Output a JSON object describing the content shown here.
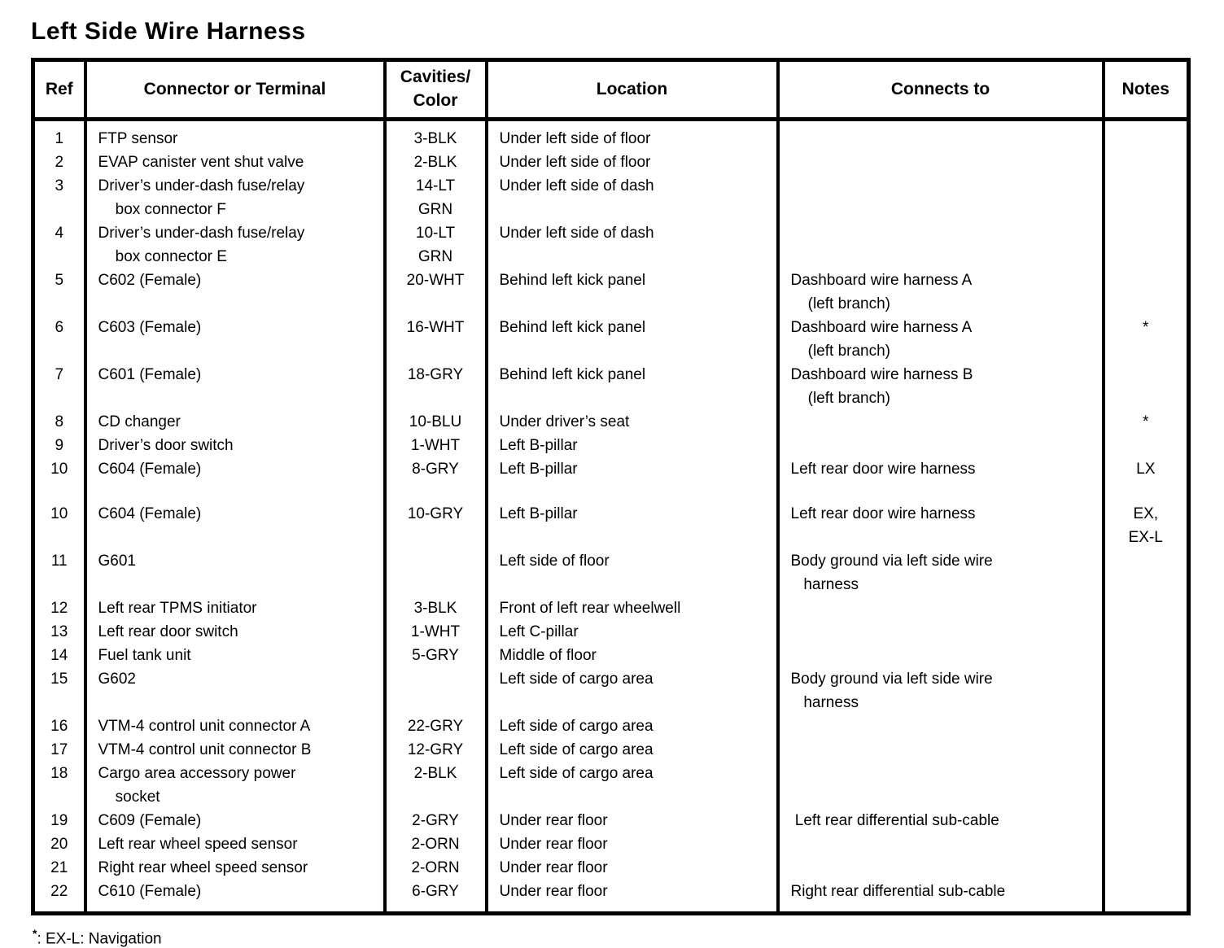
{
  "page": {
    "title": "Left Side Wire Harness",
    "footnote_symbol": "*",
    "footnote_text": ": EX-L: Navigation"
  },
  "table": {
    "headers": [
      {
        "id": "ref",
        "lines": [
          "Ref"
        ]
      },
      {
        "id": "connector",
        "lines": [
          "Connector or Terminal"
        ]
      },
      {
        "id": "cavities",
        "lines": [
          "Cavities/",
          "Color"
        ]
      },
      {
        "id": "location",
        "lines": [
          "Location"
        ]
      },
      {
        "id": "connects",
        "lines": [
          "Connects to"
        ]
      },
      {
        "id": "notes",
        "lines": [
          "Notes"
        ]
      }
    ],
    "rows": [
      {
        "ref": "1",
        "connector": [
          "FTP sensor"
        ],
        "cavities": [
          "3-BLK"
        ],
        "location": [
          "Under left side of floor"
        ],
        "connects_to": [],
        "notes": []
      },
      {
        "ref": "2",
        "connector": [
          "EVAP canister vent shut valve"
        ],
        "cavities": [
          "2-BLK"
        ],
        "location": [
          "Under left side of floor"
        ],
        "connects_to": [],
        "notes": []
      },
      {
        "ref": "3",
        "connector": [
          "Driver’s under-dash fuse/relay",
          "    box connector F"
        ],
        "cavities": [
          "14-LT",
          "GRN"
        ],
        "location": [
          "Under left side of dash"
        ],
        "connects_to": [],
        "notes": []
      },
      {
        "ref": "4",
        "connector": [
          "Driver’s under-dash fuse/relay",
          "    box connector E"
        ],
        "cavities": [
          "10-LT",
          "GRN"
        ],
        "location": [
          "Under left side of dash"
        ],
        "connects_to": [],
        "notes": []
      },
      {
        "ref": "5",
        "connector": [
          "C602 (Female)"
        ],
        "cavities": [
          "20-WHT"
        ],
        "location": [
          "Behind left kick panel"
        ],
        "connects_to": [
          "Dashboard wire harness A",
          "    (left branch)"
        ],
        "notes": []
      },
      {
        "ref": "6",
        "connector": [
          "C603 (Female)"
        ],
        "cavities": [
          "16-WHT"
        ],
        "location": [
          "Behind left kick panel"
        ],
        "connects_to": [
          "Dashboard wire harness A",
          "    (left branch)"
        ],
        "notes": [
          "*"
        ]
      },
      {
        "ref": "7",
        "connector": [
          "C601 (Female)"
        ],
        "cavities": [
          "18-GRY"
        ],
        "location": [
          "Behind left kick panel"
        ],
        "connects_to": [
          "Dashboard wire harness B",
          "    (left branch)"
        ],
        "notes": []
      },
      {
        "ref": "8",
        "connector": [
          "CD changer"
        ],
        "cavities": [
          "10-BLU"
        ],
        "location": [
          "Under driver’s seat"
        ],
        "connects_to": [],
        "notes": [
          "*"
        ]
      },
      {
        "ref": "9",
        "connector": [
          "Driver’s door switch"
        ],
        "cavities": [
          "1-WHT"
        ],
        "location": [
          "Left B-pillar"
        ],
        "connects_to": [],
        "notes": []
      },
      {
        "ref": "10",
        "connector": [
          "C604 (Female)"
        ],
        "cavities": [
          "8-GRY"
        ],
        "location": [
          "Left B-pillar"
        ],
        "connects_to": [
          "Left rear door wire harness"
        ],
        "notes": [
          "LX"
        ],
        "gap_after": true
      },
      {
        "ref": "10",
        "connector": [
          "C604 (Female)"
        ],
        "cavities": [
          "10-GRY"
        ],
        "location": [
          "Left B-pillar"
        ],
        "connects_to": [
          "Left rear door wire harness"
        ],
        "notes": [
          "EX,",
          "EX-L"
        ]
      },
      {
        "ref": "11",
        "connector": [
          "G601"
        ],
        "cavities": [],
        "location": [
          "Left side of floor"
        ],
        "connects_to": [
          "Body ground via left side wire",
          "   harness"
        ],
        "notes": []
      },
      {
        "ref": "12",
        "connector": [
          "Left rear TPMS initiator"
        ],
        "cavities": [
          "3-BLK"
        ],
        "location": [
          "Front of left rear wheelwell"
        ],
        "connects_to": [],
        "notes": []
      },
      {
        "ref": "13",
        "connector": [
          "Left rear door switch"
        ],
        "cavities": [
          "1-WHT"
        ],
        "location": [
          "Left C-pillar"
        ],
        "connects_to": [],
        "notes": []
      },
      {
        "ref": "14",
        "connector": [
          "Fuel tank unit"
        ],
        "cavities": [
          "5-GRY"
        ],
        "location": [
          "Middle of floor"
        ],
        "connects_to": [],
        "notes": []
      },
      {
        "ref": "15",
        "connector": [
          "G602"
        ],
        "cavities": [],
        "location": [
          "Left side of cargo area"
        ],
        "connects_to": [
          "Body ground via left side wire",
          "   harness"
        ],
        "notes": []
      },
      {
        "ref": "16",
        "connector": [
          "VTM-4 control unit connector A"
        ],
        "cavities": [
          "22-GRY"
        ],
        "location": [
          "Left side of cargo area"
        ],
        "connects_to": [],
        "notes": []
      },
      {
        "ref": "17",
        "connector": [
          "VTM-4 control unit connector B"
        ],
        "cavities": [
          "12-GRY"
        ],
        "location": [
          "Left side of cargo area"
        ],
        "connects_to": [],
        "notes": []
      },
      {
        "ref": "18",
        "connector": [
          "Cargo area accessory power",
          "    socket"
        ],
        "cavities": [
          "2-BLK"
        ],
        "location": [
          "Left side of cargo area"
        ],
        "connects_to": [],
        "notes": []
      },
      {
        "ref": "19",
        "connector": [
          "C609 (Female)"
        ],
        "cavities": [
          "2-GRY"
        ],
        "location": [
          "Under rear floor"
        ],
        "connects_to": [
          " Left rear differential sub-cable"
        ],
        "notes": []
      },
      {
        "ref": "20",
        "connector": [
          "Left rear wheel speed sensor"
        ],
        "cavities": [
          "2-ORN"
        ],
        "location": [
          "Under rear floor"
        ],
        "connects_to": [],
        "notes": []
      },
      {
        "ref": "21",
        "connector": [
          "Right rear wheel speed sensor"
        ],
        "cavities": [
          "2-ORN"
        ],
        "location": [
          "Under rear floor"
        ],
        "connects_to": [],
        "notes": []
      },
      {
        "ref": "22",
        "connector": [
          "C610 (Female)"
        ],
        "cavities": [
          "6-GRY"
        ],
        "location": [
          "Under rear floor"
        ],
        "connects_to": [
          "Right rear differential sub-cable"
        ],
        "notes": []
      }
    ]
  }
}
